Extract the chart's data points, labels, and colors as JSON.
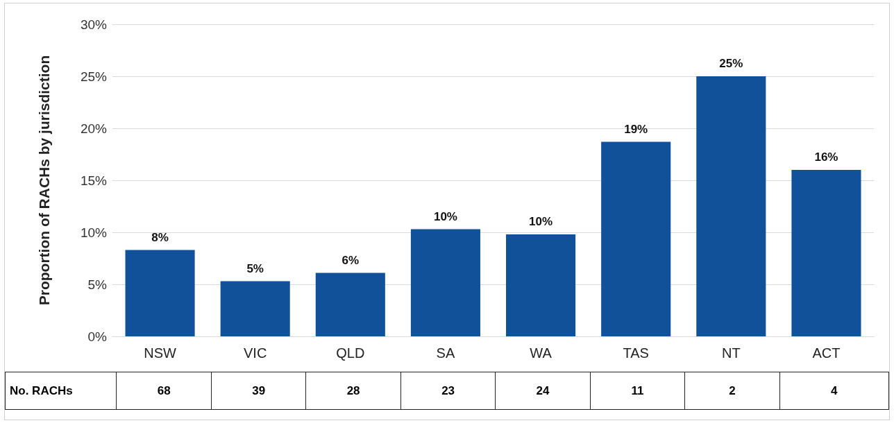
{
  "chart_data": [
    {
      "type": "bar",
      "ylabel": "Proportion of RACHs by jurisdiction",
      "categories": [
        "NSW",
        "VIC",
        "QLD",
        "SA",
        "WA",
        "TAS",
        "NT",
        "ACT"
      ],
      "values": [
        8.3,
        5.3,
        6.1,
        10.3,
        9.8,
        18.7,
        25.0,
        16.0
      ],
      "value_labels": [
        "8%",
        "5%",
        "6%",
        "10%",
        "10%",
        "19%",
        "25%",
        "16%"
      ],
      "color": "#105199",
      "ylim": [
        0,
        30
      ],
      "yticks": [
        {
          "value": 0,
          "label": "0%"
        },
        {
          "value": 5,
          "label": "5%"
        },
        {
          "value": 10,
          "label": "10%"
        },
        {
          "value": 15,
          "label": "15%"
        },
        {
          "value": 20,
          "label": "20%"
        },
        {
          "value": 25,
          "label": "25%"
        },
        {
          "value": 30,
          "label": "30%"
        }
      ],
      "grid": "y"
    },
    {
      "type": "other",
      "title": "No. RACHs",
      "values": [
        68,
        39,
        28,
        23,
        24,
        11,
        2,
        4
      ],
      "data_labels": true
    }
  ]
}
